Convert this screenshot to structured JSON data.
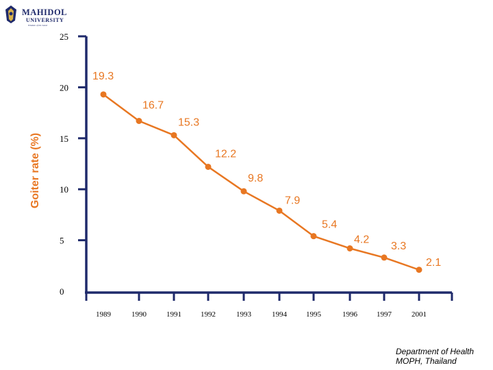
{
  "logo": {
    "name": "MAHIDOL",
    "sub": "UNIVERSITY",
    "motto": "Wisdom of the Land"
  },
  "chart_data": {
    "type": "line",
    "title": "",
    "xlabel": "",
    "ylabel": "Goiter rate (%)",
    "categories": [
      "1989",
      "1990",
      "1991",
      "1992",
      "1993",
      "1994",
      "1995",
      "1996",
      "1997",
      "2001"
    ],
    "values": [
      19.3,
      16.7,
      15.3,
      12.2,
      9.8,
      7.9,
      5.4,
      4.2,
      3.3,
      2.1
    ],
    "data_labels": [
      "19.3",
      "16.7",
      "15.3",
      "12.2",
      "9.8",
      "7.9",
      "5.4",
      "4.2",
      "3.3",
      "2.1"
    ],
    "y_ticks": [
      0,
      5,
      10,
      15,
      20,
      25
    ],
    "ylim": [
      0,
      25
    ],
    "series_color": "#e87722",
    "axis_color": "#1f2a6b"
  },
  "source": {
    "line1": "Department of Health",
    "line2": "MOPH, Thailand"
  }
}
